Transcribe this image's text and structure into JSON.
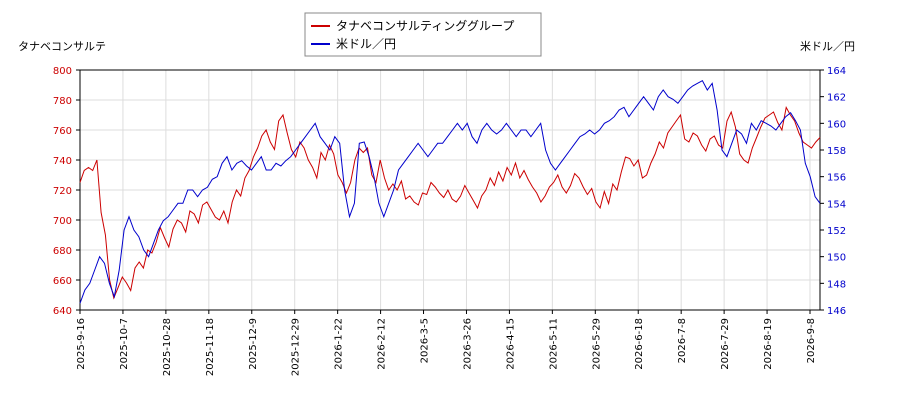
{
  "chart_data": {
    "type": "line",
    "left_axis_label": "タナベコンサルテ",
    "right_axis_label": "米ドル／円",
    "x_ticks": [
      "2025-9-16",
      "2025-10-7",
      "2025-10-28",
      "2025-11-18",
      "2025-12-9",
      "2025-12-29",
      "2026-1-22",
      "2026-2-12",
      "2026-3-5",
      "2026-3-26",
      "2026-4-15",
      "2026-5-11",
      "2026-5-29",
      "2026-6-18",
      "2026-7-8",
      "2026-7-29",
      "2026-8-19",
      "2026-9-8"
    ],
    "y_left": {
      "min": 640,
      "max": 800,
      "ticks": [
        640,
        660,
        680,
        700,
        720,
        740,
        760,
        780,
        800
      ]
    },
    "y_right": {
      "min": 146,
      "max": 164,
      "ticks": [
        146,
        148,
        150,
        152,
        154,
        156,
        158,
        160,
        162,
        164
      ]
    },
    "grid": true,
    "legend_position": "top-center",
    "series": [
      {
        "name": "タナベコンサルティンググループ",
        "axis": "left",
        "color": "#cc0000",
        "values": [
          725,
          733,
          735,
          733,
          740,
          705,
          690,
          660,
          648,
          655,
          662,
          658,
          653,
          668,
          672,
          668,
          680,
          678,
          685,
          695,
          688,
          682,
          694,
          700,
          698,
          692,
          706,
          704,
          698,
          710,
          712,
          707,
          702,
          700,
          706,
          698,
          712,
          720,
          716,
          728,
          733,
          742,
          748,
          756,
          760,
          752,
          747,
          766,
          770,
          758,
          747,
          742,
          752,
          748,
          740,
          735,
          728,
          745,
          740,
          750,
          744,
          730,
          725,
          718,
          725,
          740,
          748,
          745,
          748,
          730,
          725,
          740,
          728,
          720,
          724,
          720,
          726,
          714,
          716,
          712,
          710,
          718,
          717,
          725,
          722,
          718,
          715,
          720,
          714,
          712,
          716,
          723,
          718,
          713,
          708,
          716,
          720,
          728,
          723,
          732,
          726,
          735,
          730,
          738,
          728,
          733,
          727,
          722,
          718,
          712,
          716,
          722,
          725,
          730,
          722,
          718,
          723,
          731,
          728,
          722,
          717,
          721,
          712,
          708,
          719,
          711,
          724,
          720,
          732,
          742,
          741,
          736,
          740,
          728,
          730,
          738,
          744,
          752,
          748,
          758,
          762,
          766,
          770,
          754,
          752,
          758,
          756,
          750,
          746,
          754,
          756,
          750,
          748,
          766,
          772,
          762,
          744,
          740,
          738,
          748,
          755,
          762,
          768,
          770,
          772,
          765,
          760,
          775,
          770,
          766,
          758,
          752,
          750,
          748,
          752,
          755
        ],
        "raw_note": ""
      },
      {
        "name": "米ドル／円",
        "axis": "right",
        "color": "#0000cc",
        "values": [
          146.5,
          147.5,
          148,
          149,
          150,
          149.5,
          148,
          147,
          149,
          152,
          153,
          152,
          151.5,
          150.5,
          150,
          151,
          152,
          152.7,
          153,
          153.5,
          154,
          154,
          155,
          155,
          154.5,
          155,
          155.2,
          155.8,
          156,
          157,
          157.5,
          156.5,
          157,
          157.2,
          156.8,
          156.5,
          157,
          157.5,
          156.5,
          156.5,
          157,
          156.8,
          157.2,
          157.5,
          158,
          158.5,
          159,
          159.5,
          160,
          159,
          158.5,
          158,
          159,
          158.5,
          155,
          153,
          154,
          158.5,
          158.6,
          157.5,
          156,
          154,
          153,
          154,
          155,
          156.5,
          157,
          157.5,
          158,
          158.5,
          158,
          157.5,
          158,
          158.5,
          158.5,
          159,
          159.5,
          160,
          159.5,
          160,
          159,
          158.5,
          159.5,
          160,
          159.5,
          159.2,
          159.5,
          160,
          159.5,
          159,
          159.5,
          159.5,
          159,
          159.5,
          160,
          158,
          157,
          156.5,
          157,
          157.5,
          158,
          158.5,
          159,
          159.2,
          159.5,
          159.2,
          159.5,
          160,
          160.2,
          160.5,
          161,
          161.2,
          160.5,
          161,
          161.5,
          162,
          161.5,
          161,
          162,
          162.5,
          162,
          161.8,
          161.5,
          162,
          162.5,
          162.8,
          163,
          163.2,
          162.5,
          163,
          161,
          158,
          157.5,
          158.5,
          159.5,
          159.2,
          158.5,
          160,
          159.5,
          160.2,
          160,
          159.8,
          159.5,
          160,
          160.5,
          160.8,
          160.2,
          159.5,
          157,
          156,
          154.5,
          154
        ]
      }
    ]
  },
  "legend": {
    "items": [
      {
        "label": "タナベコンサルティンググループ",
        "color": "#cc0000"
      },
      {
        "label": "米ドル／円",
        "color": "#0000cc"
      }
    ]
  }
}
